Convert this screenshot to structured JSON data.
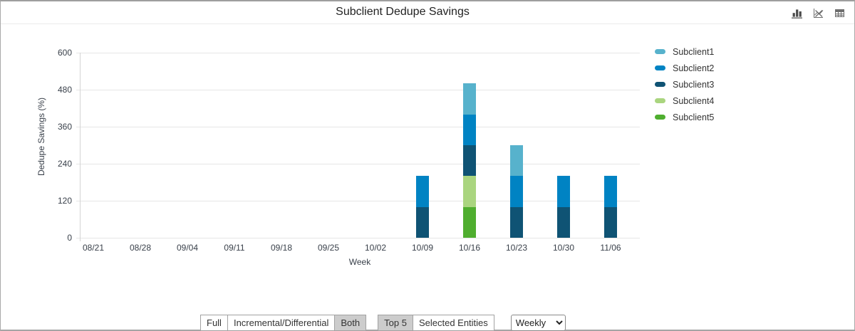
{
  "header": {
    "title": "Subclient Dedupe Savings",
    "icons": [
      "bar-chart-icon",
      "line-chart-disabled-icon",
      "table-view-icon"
    ]
  },
  "chart_data": {
    "type": "bar",
    "stacked": true,
    "title": "Subclient Dedupe Savings",
    "xlabel": "Week",
    "ylabel": "Dedupe Savings (%)",
    "ylim": [
      0,
      600
    ],
    "yticks": [
      0,
      120,
      240,
      360,
      480,
      600
    ],
    "grid": true,
    "legend_position": "right",
    "categories": [
      "08/21",
      "08/28",
      "09/04",
      "09/11",
      "09/18",
      "09/25",
      "10/02",
      "10/09",
      "10/16",
      "10/23",
      "10/30",
      "11/06"
    ],
    "series": [
      {
        "name": "Subclient1",
        "color": "#57b2cc",
        "values": [
          0,
          0,
          0,
          0,
          0,
          0,
          0,
          0,
          100,
          100,
          0,
          0
        ]
      },
      {
        "name": "Subclient2",
        "color": "#0083c3",
        "values": [
          0,
          0,
          0,
          0,
          0,
          0,
          0,
          100,
          100,
          100,
          100,
          100
        ]
      },
      {
        "name": "Subclient3",
        "color": "#0f5374",
        "values": [
          0,
          0,
          0,
          0,
          0,
          0,
          0,
          100,
          100,
          100,
          100,
          100
        ]
      },
      {
        "name": "Subclient4",
        "color": "#aad57f",
        "values": [
          0,
          0,
          0,
          0,
          0,
          0,
          0,
          0,
          100,
          0,
          0,
          0
        ]
      },
      {
        "name": "Subclient5",
        "color": "#4fae2f",
        "values": [
          0,
          0,
          0,
          0,
          0,
          0,
          0,
          0,
          100,
          0,
          0,
          0
        ]
      }
    ]
  },
  "footer": {
    "type_group": [
      {
        "label": "Full",
        "selected": false
      },
      {
        "label": "Incremental/Differential",
        "selected": false
      },
      {
        "label": "Both",
        "selected": true
      }
    ],
    "entity_group": [
      {
        "label": "Top 5",
        "selected": true
      },
      {
        "label": "Selected Entities",
        "selected": false
      }
    ],
    "interval_select": {
      "value": "Weekly",
      "options": [
        "Weekly"
      ]
    }
  }
}
